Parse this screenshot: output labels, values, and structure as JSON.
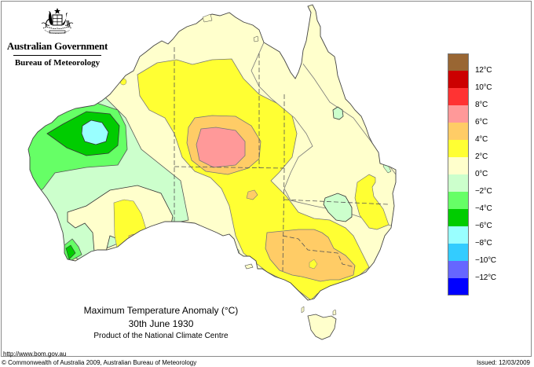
{
  "header": {
    "government": "Australian Government",
    "bureau": "Bureau of Meteorology",
    "crest_icon": "coat-of-arms-icon"
  },
  "map": {
    "title": "Maximum Temperature Anomaly (°C)",
    "date": "30th June 1930",
    "product": "Product of the National Climate Centre",
    "region": "Australia",
    "colors": {
      "land_base": "#fffccc",
      "ocean": "#ffffff",
      "coast": "#555555",
      "contour": "#777777",
      "state_border": "#555555"
    }
  },
  "legend": {
    "items": [
      {
        "color": "#996633",
        "label": "12°C"
      },
      {
        "color": "#cc0000",
        "label": "10°C"
      },
      {
        "color": "#ff3333",
        "label": "8°C"
      },
      {
        "color": "#ff9999",
        "label": "6°C"
      },
      {
        "color": "#ffcc66",
        "label": "4°C"
      },
      {
        "color": "#ffff33",
        "label": "2°C"
      },
      {
        "color": "#ffffcc",
        "label": "0°C"
      },
      {
        "color": "#ccffcc",
        "label": "−2°C"
      },
      {
        "color": "#66ff66",
        "label": "−4°C"
      },
      {
        "color": "#00cc00",
        "label": "−6°C"
      },
      {
        "color": "#99ffff",
        "label": "−8°C"
      },
      {
        "color": "#33ccff",
        "label": "−10°C"
      },
      {
        "color": "#6666ff",
        "label": "−12°C"
      },
      {
        "color": "#0000ff",
        "label": ""
      }
    ]
  },
  "footer": {
    "url": "http://www.bom.gov.au",
    "copyright": "© Commonwealth of Australia 2009, Australian Bureau of Meteorology",
    "issued": "Issued: 12/03/2009"
  }
}
